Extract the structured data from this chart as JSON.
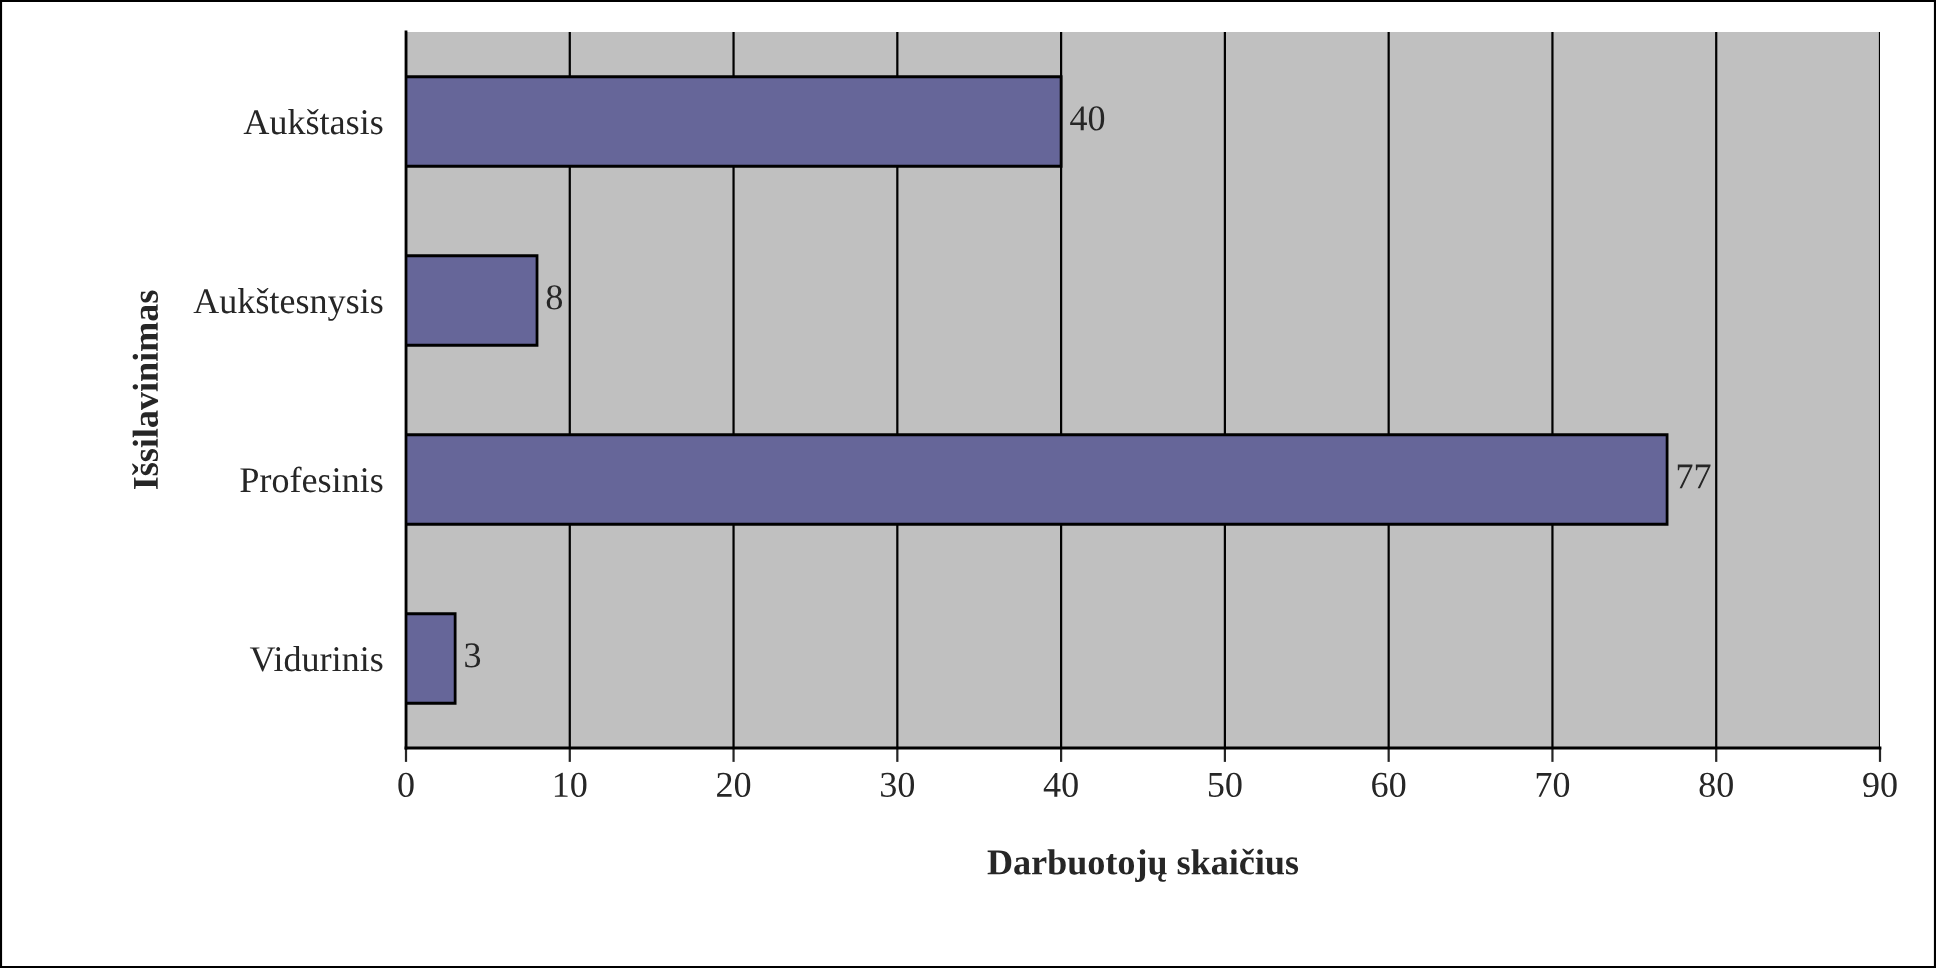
{
  "chart_data": {
    "type": "bar",
    "orientation": "horizontal",
    "categories": [
      "Aukštasis",
      "Aukštesnysis",
      "Profesinis",
      "Vidurinis"
    ],
    "values": [
      40,
      8,
      77,
      3
    ],
    "color": "#666699",
    "xlim": [
      0,
      90
    ],
    "xticks": [
      0,
      10,
      20,
      30,
      40,
      50,
      60,
      70,
      80,
      90
    ],
    "xlabel": "Darbuotojų skaičius",
    "ylabel": "Išsilavinimas",
    "grid": "x",
    "data_labels": true
  }
}
